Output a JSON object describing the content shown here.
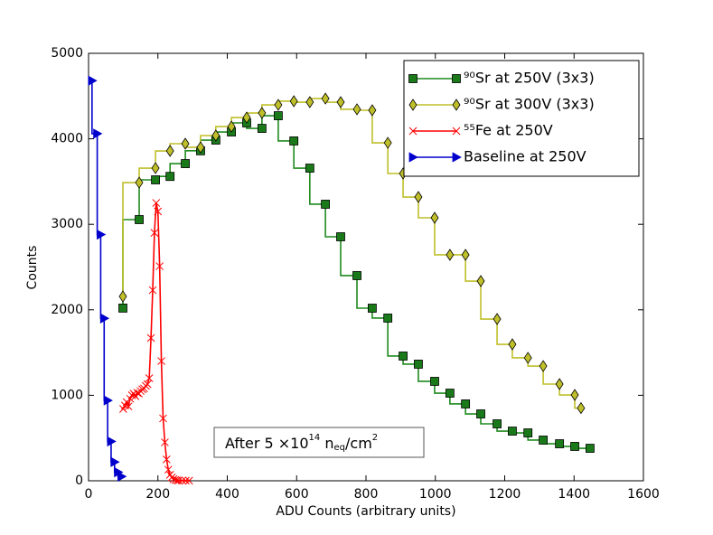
{
  "chart_data": {
    "type": "line",
    "xlabel": "ADU Counts (arbitrary units)",
    "ylabel": "Counts",
    "xlim": [
      0,
      1600
    ],
    "xticks": [
      0,
      200,
      400,
      600,
      800,
      1000,
      1200,
      1400,
      1600
    ],
    "ylim": [
      0,
      5000
    ],
    "yticks": [
      0,
      1000,
      2000,
      3000,
      4000,
      5000
    ],
    "legend": "upper right",
    "annotation": [
      "After 5 ×10",
      "14",
      " n",
      "eq",
      "/cm",
      "2"
    ],
    "series": [
      {
        "name": "⁹⁰Sr at 250V (3x3)",
        "color": "#1f8a1f",
        "marker": "s",
        "drawstyle": "steps-pre",
        "x": [
          99,
          146,
          193,
          235,
          279,
          323,
          367,
          412,
          456,
          500,
          547,
          592,
          638,
          683,
          727,
          774,
          818,
          863,
          907,
          951,
          998,
          1042,
          1087,
          1131,
          1178,
          1222,
          1267,
          1311,
          1358,
          1402,
          1446
        ],
        "values": [
          2020,
          3055,
          3520,
          3560,
          3710,
          3860,
          3985,
          4080,
          4186,
          4122,
          4270,
          3975,
          3657,
          3235,
          2854,
          2400,
          2019,
          1903,
          1459,
          1364,
          1163,
          1025,
          899,
          782,
          666,
          581,
          560,
          476,
          433,
          402,
          380
        ]
      },
      {
        "name": "⁹⁰Sr at 300V (3x3)",
        "color": "#bfbf2a",
        "marker": "d",
        "drawstyle": "steps-pre",
        "x": [
          99,
          146,
          193,
          235,
          279,
          323,
          367,
          412,
          456,
          500,
          547,
          592,
          638,
          683,
          727,
          774,
          818,
          863,
          907,
          951,
          998,
          1042,
          1087,
          1131,
          1178,
          1222,
          1267,
          1311,
          1358,
          1402,
          1420
        ],
        "values": [
          2156,
          3488,
          3657,
          3858,
          3943,
          3900,
          4038,
          4143,
          4249,
          4302,
          4397,
          4440,
          4429,
          4471,
          4429,
          4345,
          4334,
          3953,
          3594,
          3319,
          3076,
          2643,
          2643,
          2336,
          1892,
          1596,
          1438,
          1342,
          1131,
          1004,
          850
        ]
      },
      {
        "name": "⁵⁵Fe at 250V",
        "color": "#ff0000",
        "marker": "x",
        "drawstyle": "default",
        "x": [
          100,
          105,
          110,
          115,
          120,
          125,
          130,
          135,
          140,
          145,
          150,
          155,
          160,
          165,
          170,
          175,
          180,
          185,
          190,
          195,
          200,
          205,
          210,
          215,
          220,
          225,
          230,
          235,
          240,
          245,
          250,
          255,
          260,
          270,
          280,
          290
        ],
        "values": [
          840,
          880,
          920,
          870,
          960,
          1000,
          1020,
          990,
          1030,
          1020,
          1050,
          1070,
          1080,
          1110,
          1130,
          1200,
          1670,
          2230,
          2900,
          3250,
          3150,
          2510,
          1400,
          730,
          450,
          250,
          130,
          70,
          40,
          20,
          10,
          5,
          3,
          2,
          1,
          1
        ]
      },
      {
        "name": "Baseline at 250V",
        "color": "#0000cc",
        "marker": ">",
        "drawstyle": "steps-pre",
        "x": [
          10,
          25,
          35,
          45,
          55,
          65,
          75,
          85,
          95
        ],
        "values": [
          4680,
          4060,
          2880,
          1900,
          940,
          460,
          220,
          100,
          50
        ]
      }
    ]
  }
}
